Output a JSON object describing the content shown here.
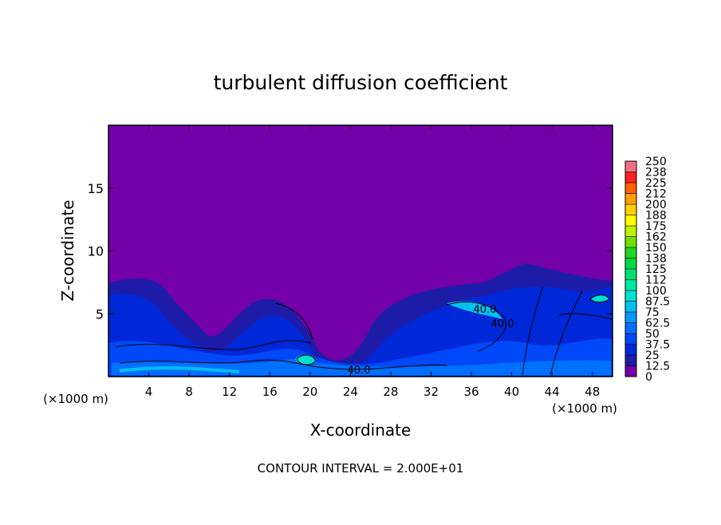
{
  "chart_data": {
    "type": "contour",
    "title": "turbulent diffusion coefficient",
    "xlabel": "X-coordinate",
    "ylabel": "Z-coordinate",
    "x_unit": "(×1000 m)",
    "footnote": "CONTOUR INTERVAL = 2.000E+01",
    "xlim": [
      0,
      50
    ],
    "xticks": [
      4,
      8,
      12,
      16,
      20,
      24,
      28,
      32,
      36,
      40,
      44,
      48
    ],
    "ylim": [
      0,
      20
    ],
    "yticks": [
      5,
      10,
      15
    ],
    "contour_labels": [
      {
        "value": 40,
        "label": "40.0"
      },
      {
        "value": 40,
        "label": "40.0"
      },
      {
        "value": 40,
        "label": "40.0"
      }
    ],
    "colorbar": {
      "ticks": [
        0,
        12.5,
        25,
        37.5,
        50,
        62.5,
        75,
        87.5,
        100,
        {
          "value": 112.5,
          "label": "112"
        },
        125,
        {
          "value": 137.5,
          "label": "138"
        },
        150,
        {
          "value": 162.5,
          "label": "162"
        },
        175,
        {
          "value": 187.5,
          "label": "188"
        },
        200,
        {
          "value": 212.5,
          "label": "212"
        },
        225,
        {
          "value": 237.5,
          "label": "238"
        },
        250
      ],
      "colors": [
        "#7300a8",
        "#1c1ca8",
        "#0028d8",
        "#0048f8",
        "#0070ff",
        "#0098ff",
        "#00c0f0",
        "#00e0d0",
        "#00e8a0",
        "#00e070",
        "#00d840",
        "#20d820",
        "#70e000",
        "#c0f000",
        "#ffff00",
        "#ffd000",
        "#ffa000",
        "#ff6000",
        "#ff2020",
        "#f07080"
      ]
    }
  }
}
